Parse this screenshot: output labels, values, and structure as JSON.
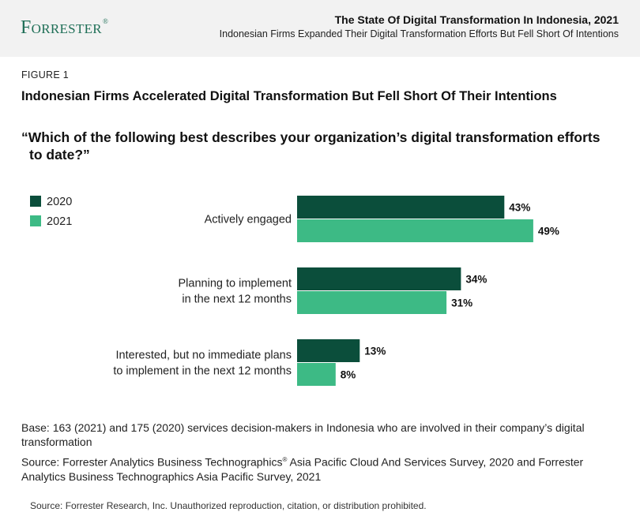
{
  "header": {
    "logo_text": "Forrester",
    "logo_mark": "®",
    "report_title": "The State Of Digital Transformation In Indonesia, 2021",
    "report_subtitle": "Indonesian Firms Expanded Their Digital Transformation Efforts But Fell Short Of Intentions"
  },
  "figure": {
    "number": "FIGURE 1",
    "title": "Indonesian Firms Accelerated Digital Transformation But Fell Short Of Their Intentions",
    "question": "“Which of the following best describes your organization’s digital transformation efforts to date?”"
  },
  "chart_data": {
    "type": "bar",
    "orientation": "horizontal",
    "categories": [
      [
        "Actively engaged"
      ],
      [
        "Planning to implement",
        "in the next 12 months"
      ],
      [
        "Interested, but no immediate plans",
        "to implement in the next 12 months"
      ]
    ],
    "series": [
      {
        "name": "2020",
        "color": "#0b4e3b",
        "values": [
          43,
          34,
          13
        ]
      },
      {
        "name": "2021",
        "color": "#3dba85",
        "values": [
          49,
          31,
          8
        ]
      }
    ],
    "value_suffix": "%",
    "legend_position": "top-left",
    "grid": false
  },
  "notes": {
    "base": "Base: 163 (2021) and 175 (2020) services decision-makers in Indonesia who are involved in their company’s digital transformation",
    "source_part1": "Source: Forrester Analytics Business Technographics",
    "source_mark": "®",
    "source_part2": " Asia Pacific Cloud And Services Survey, 2020 and Forrester Analytics Business Technographics Asia Pacific Survey, 2021",
    "footer": "Source: Forrester Research, Inc. Unauthorized reproduction, citation, or distribution prohibited."
  }
}
